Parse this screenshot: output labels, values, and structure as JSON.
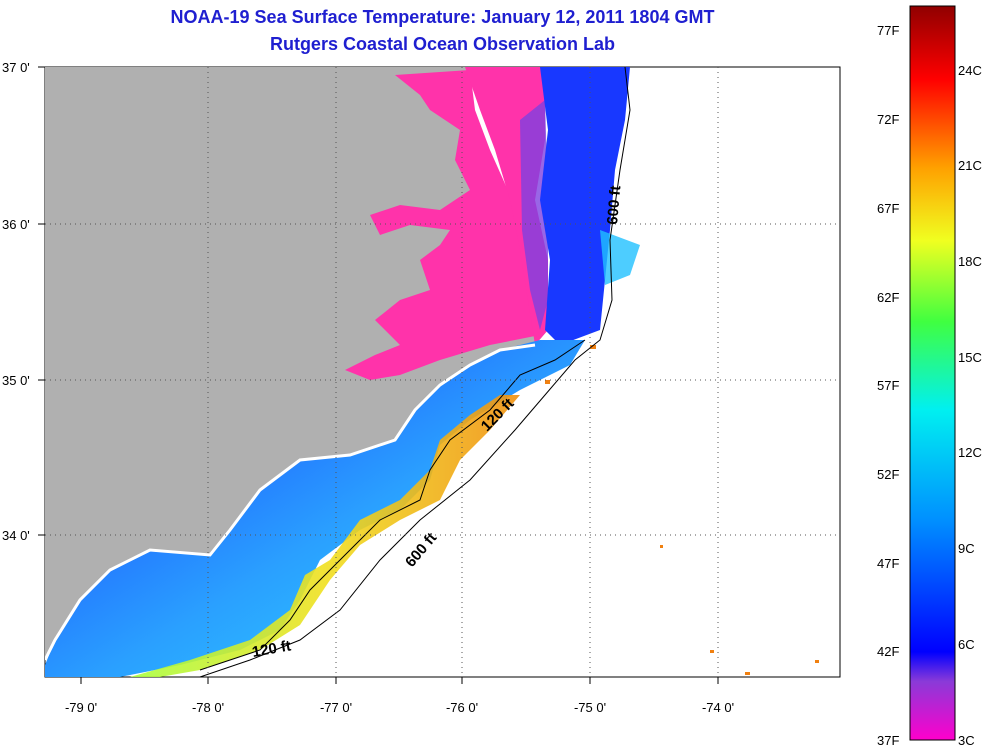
{
  "title": {
    "line1": "NOAA-19 Sea Surface Temperature:  January 12, 2011 1804 GMT",
    "line2": "Rutgers Coastal Ocean Observation Lab"
  },
  "map": {
    "lon_ticks": [
      "-79 0'",
      "-78 0'",
      "-77 0'",
      "-76 0'",
      "-75 0'",
      "-74 0'"
    ],
    "lat_ticks": [
      "37 0'",
      "36 0'",
      "35 0'",
      "34 0'"
    ],
    "contours": {
      "a": "600 ft",
      "b": "600 ft",
      "c": "120 ft",
      "d": "120 ft"
    },
    "colors": {
      "land": "#b0b0b0",
      "cold": "#ff33aa",
      "blue": "#1f3fff",
      "warm": "#f0d020",
      "ocean_nodata": "#ffffff"
    }
  },
  "colorbar": {
    "fahrenheit": [
      "77F",
      "72F",
      "67F",
      "62F",
      "57F",
      "52F",
      "47F",
      "42F",
      "37F"
    ],
    "celsius": [
      "24C",
      "21C",
      "18C",
      "15C",
      "12C",
      "9C",
      "6C",
      "3C"
    ]
  }
}
